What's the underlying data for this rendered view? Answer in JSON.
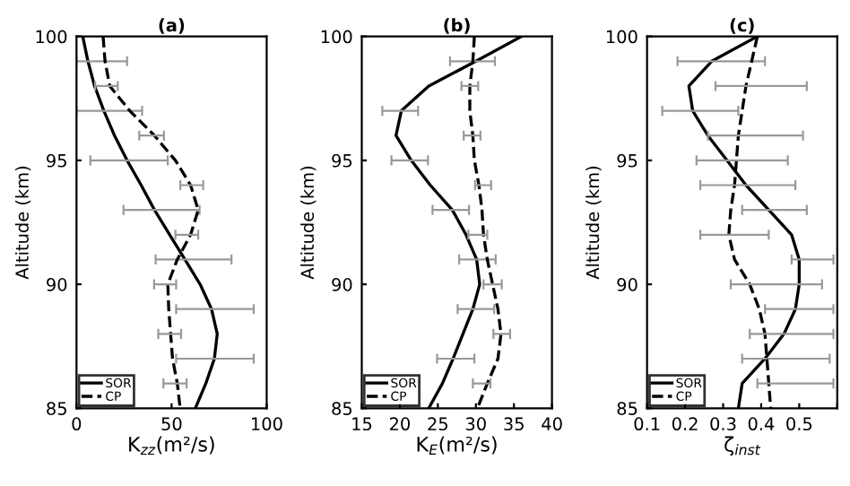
{
  "chart_data": [
    {
      "type": "line",
      "title": "(a)",
      "xlabel": "K$_{zz}$(m²/s)",
      "ylabel": "Altitude (km)",
      "xlim": [
        0,
        100
      ],
      "xticks": [
        0,
        50,
        100
      ],
      "ylim": [
        85,
        100
      ],
      "yticks": [
        85,
        90,
        95,
        100
      ],
      "legend": "bottom left",
      "grid": false,
      "series": [
        {
          "name": "SOR",
          "color": "#000000",
          "line_style": "solid",
          "x": [
            3.3,
            6,
            9.5,
            14.4,
            20,
            26.6,
            34,
            41,
            49,
            57,
            65,
            71,
            74,
            72.5,
            68,
            62.5
          ],
          "values": [
            100,
            99,
            98,
            97,
            96,
            95,
            94,
            93,
            92,
            91,
            90,
            89,
            88,
            87,
            86,
            85
          ],
          "xerrors": [
            null,
            [
              0,
              26.6
            ],
            null,
            [
              0,
              34.5
            ],
            null,
            [
              7.3,
              48
            ],
            null,
            [
              24.7,
              64.7
            ],
            null,
            [
              41.6,
              81.5
            ],
            null,
            [
              52.4,
              93.2
            ],
            null,
            [
              52.4,
              93.2
            ],
            null,
            null
          ]
        },
        {
          "name": "CP",
          "color": "#000000",
          "line_style": "dashed",
          "x": [
            14,
            15,
            17.5,
            28,
            41,
            52,
            60,
            64,
            60,
            53,
            48,
            48.5,
            49.5,
            50.5,
            53,
            54.5
          ],
          "values": [
            100,
            99,
            98,
            97,
            96,
            95,
            94,
            93,
            92,
            91,
            90,
            89,
            88,
            87,
            86,
            85
          ],
          "xerrors": [
            null,
            null,
            [
              9.8,
              21.7
            ],
            null,
            [
              33,
              46
            ],
            null,
            [
              54.6,
              66.6
            ],
            null,
            [
              52,
              64
            ],
            null,
            [
              40.8,
              52.4
            ],
            null,
            [
              43,
              55
            ],
            null,
            [
              45.7,
              57.9
            ],
            null
          ]
        }
      ]
    },
    {
      "type": "line",
      "title": "(b)",
      "xlabel": "K$_{E}$(m²/s)",
      "ylabel": "Altitude (km)",
      "xlim": [
        15,
        40
      ],
      "xticks": [
        15,
        20,
        25,
        30,
        35,
        40
      ],
      "ylim": [
        85,
        100
      ],
      "yticks": [
        85,
        90,
        95,
        100
      ],
      "legend": "bottom left",
      "grid": false,
      "series": [
        {
          "name": "SOR",
          "color": "#000000",
          "line_style": "solid",
          "x": [
            36,
            30,
            23.8,
            20.2,
            19.5,
            21.5,
            24,
            26.9,
            28.7,
            30.1,
            30.5,
            29.6,
            28.3,
            27,
            25.6,
            23.8
          ],
          "values": [
            100,
            99,
            98,
            97,
            96,
            95,
            94,
            93,
            92,
            91,
            90,
            89,
            88,
            87,
            86,
            85
          ],
          "xerrors": [
            null,
            [
              26.6,
              32.5
            ],
            null,
            [
              17.7,
              22.4
            ],
            null,
            [
              18.9,
              23.7
            ],
            null,
            [
              24.3,
              29.1
            ],
            null,
            [
              27.8,
              32.6
            ],
            null,
            [
              27.6,
              32.4
            ],
            null,
            [
              24.9,
              29.8
            ],
            null,
            null
          ]
        },
        {
          "name": "CP",
          "color": "#000000",
          "line_style": "dashed",
          "x": [
            29.8,
            29.6,
            29.2,
            29.2,
            29.6,
            29.8,
            30.4,
            30.8,
            31,
            31.5,
            32.2,
            32.9,
            33.3,
            32.9,
            31.5,
            30.2
          ],
          "values": [
            100,
            99,
            98,
            97,
            96,
            95,
            94,
            93,
            92,
            91,
            90,
            89,
            88,
            87,
            86,
            85
          ],
          "xerrors": [
            null,
            null,
            [
              28.1,
              30.3
            ],
            null,
            [
              28.4,
              30.6
            ],
            null,
            [
              29.9,
              32
            ],
            null,
            [
              29,
              31.5
            ],
            null,
            [
              31,
              33.4
            ],
            null,
            [
              32.3,
              34.5
            ],
            null,
            [
              29.6,
              31.9
            ],
            null
          ]
        }
      ]
    },
    {
      "type": "line",
      "title": "(c)",
      "xlabel": "ζ$_{inst}$",
      "ylabel": "Altitude (km)",
      "xlim": [
        0.1,
        0.6
      ],
      "xticks": [
        0.1,
        0.2,
        0.3,
        0.4,
        0.5,
        {
          "value": 0.6,
          "label": null
        }
      ],
      "ylim": [
        85,
        100
      ],
      "yticks": [
        85,
        90,
        95,
        100
      ],
      "legend": "bottom left",
      "grid": false,
      "series": [
        {
          "name": "SOR",
          "color": "#000000",
          "line_style": "solid",
          "x": [
            0.39,
            0.27,
            0.21,
            0.22,
            0.26,
            0.31,
            0.36,
            0.42,
            0.48,
            0.5,
            0.5,
            0.49,
            0.46,
            0.41,
            0.35,
            0.34
          ],
          "values": [
            100,
            99,
            98,
            97,
            96,
            95,
            94,
            93,
            92,
            91,
            90,
            89,
            88,
            87,
            86,
            85
          ],
          "xerrors": [
            null,
            [
              0.18,
              0.41
            ],
            null,
            [
              0.14,
              0.34
            ],
            null,
            [
              0.23,
              0.47
            ],
            null,
            [
              0.35,
              0.52
            ],
            null,
            [
              0.48,
              0.59
            ],
            null,
            [
              0.41,
              0.59
            ],
            null,
            [
              0.35,
              0.58
            ],
            null,
            null
          ]
        },
        {
          "name": "CP",
          "color": "#000000",
          "line_style": "dashed",
          "x": [
            0.39,
            0.375,
            0.36,
            0.35,
            0.34,
            0.335,
            0.33,
            0.32,
            0.315,
            0.33,
            0.37,
            0.395,
            0.41,
            0.415,
            0.42,
            0.425
          ],
          "values": [
            100,
            99,
            98,
            97,
            96,
            95,
            94,
            93,
            92,
            91,
            90,
            89,
            88,
            87,
            86,
            85
          ],
          "xerrors": [
            null,
            null,
            [
              0.28,
              0.52
            ],
            null,
            [
              0.26,
              0.51
            ],
            null,
            [
              0.24,
              0.49
            ],
            null,
            [
              0.24,
              0.42
            ],
            null,
            [
              0.32,
              0.56
            ],
            null,
            [
              0.37,
              0.59
            ],
            null,
            [
              0.39,
              0.59
            ],
            null
          ]
        }
      ]
    }
  ]
}
